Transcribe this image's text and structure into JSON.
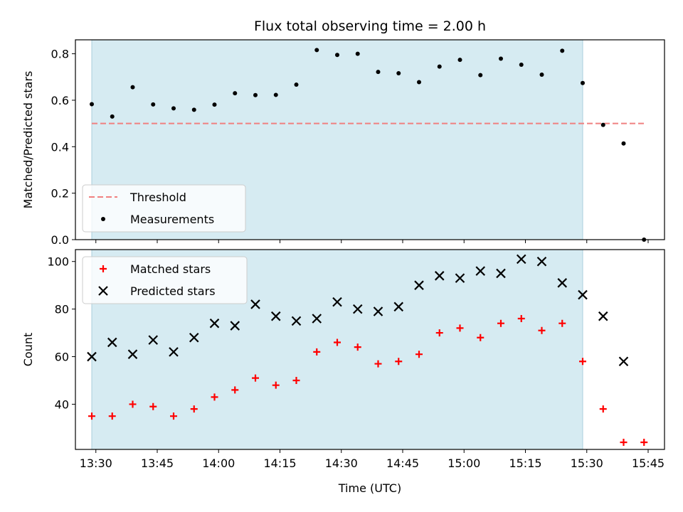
{
  "chart_data": [
    {
      "type": "scatter",
      "title": "Flux total observing time = 2.00 h",
      "xlabel": "",
      "ylabel": "Matched/Predicted stars",
      "ylim": [
        0,
        0.86
      ],
      "yticks": [
        "0.0",
        "0.2",
        "0.4",
        "0.6",
        "0.8"
      ],
      "legend": {
        "placement": "lower-left",
        "entries": [
          {
            "label": "Threshold",
            "style": "dashed-line",
            "color": "#f08080"
          },
          {
            "label": "Measurements",
            "style": "dot",
            "color": "#000000"
          }
        ]
      },
      "highlight_span": {
        "start": "13:29",
        "end": "15:29",
        "color": "#add8e6"
      },
      "threshold": {
        "value": 0.5,
        "start": "13:29",
        "end": "15:44"
      },
      "series": [
        {
          "name": "Measurements",
          "x": [
            "13:29",
            "13:34",
            "13:39",
            "13:44",
            "13:49",
            "13:54",
            "13:59",
            "14:04",
            "14:09",
            "14:14",
            "14:19",
            "14:24",
            "14:29",
            "14:34",
            "14:39",
            "14:44",
            "14:49",
            "14:54",
            "14:59",
            "15:04",
            "15:09",
            "15:14",
            "15:19",
            "15:24",
            "15:29",
            "15:34",
            "15:39",
            "15:44"
          ],
          "values": [
            0.583,
            0.53,
            0.656,
            0.582,
            0.565,
            0.559,
            0.581,
            0.63,
            0.622,
            0.623,
            0.667,
            0.816,
            0.795,
            0.8,
            0.722,
            0.716,
            0.678,
            0.745,
            0.774,
            0.708,
            0.779,
            0.753,
            0.71,
            0.813,
            0.674,
            0.494,
            0.414,
            0.0
          ]
        }
      ]
    },
    {
      "type": "scatter",
      "title": "",
      "xlabel": "Time (UTC)",
      "ylabel": "Count",
      "ylim": [
        21,
        105
      ],
      "yticks": [
        "40",
        "60",
        "80",
        "100"
      ],
      "xticks": [
        "13:30",
        "13:45",
        "14:00",
        "14:15",
        "14:30",
        "14:45",
        "15:00",
        "15:15",
        "15:30",
        "15:45"
      ],
      "legend": {
        "placement": "upper-left",
        "entries": [
          {
            "label": "Matched stars",
            "style": "plus",
            "color": "#ff0000"
          },
          {
            "label": "Predicted stars",
            "style": "cross",
            "color": "#000000"
          }
        ]
      },
      "highlight_span": {
        "start": "13:29",
        "end": "15:29",
        "color": "#add8e6"
      },
      "series": [
        {
          "name": "Matched stars",
          "x": [
            "13:29",
            "13:34",
            "13:39",
            "13:44",
            "13:49",
            "13:54",
            "13:59",
            "14:04",
            "14:09",
            "14:14",
            "14:19",
            "14:24",
            "14:29",
            "14:34",
            "14:39",
            "14:44",
            "14:49",
            "14:54",
            "14:59",
            "15:04",
            "15:09",
            "15:14",
            "15:19",
            "15:24",
            "15:29",
            "15:34",
            "15:39",
            "15:44"
          ],
          "values": [
            35,
            35,
            40,
            39,
            35,
            38,
            43,
            46,
            51,
            48,
            50,
            62,
            66,
            64,
            57,
            58,
            61,
            70,
            72,
            68,
            74,
            76,
            71,
            74,
            58,
            38,
            24,
            24
          ]
        },
        {
          "name": "Predicted stars",
          "x": [
            "13:29",
            "13:34",
            "13:39",
            "13:44",
            "13:49",
            "13:54",
            "13:59",
            "14:04",
            "14:09",
            "14:14",
            "14:19",
            "14:24",
            "14:29",
            "14:34",
            "14:39",
            "14:44",
            "14:49",
            "14:54",
            "14:59",
            "15:04",
            "15:09",
            "15:14",
            "15:19",
            "15:24",
            "15:29",
            "15:34",
            "15:39"
          ],
          "values": [
            60,
            66,
            61,
            67,
            62,
            68,
            74,
            73,
            82,
            77,
            75,
            76,
            83,
            80,
            79,
            81,
            90,
            94,
            93,
            96,
            95,
            101,
            100,
            91,
            86,
            77,
            58
          ]
        }
      ]
    }
  ]
}
